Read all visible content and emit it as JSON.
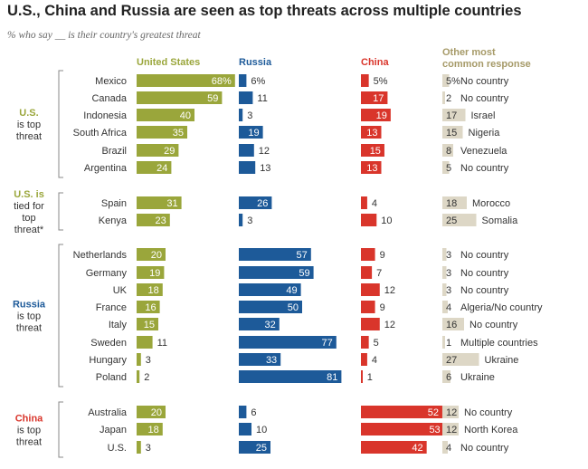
{
  "title": "U.S., China and Russia are seen as top threats across multiple countries",
  "subtitle": "% who say __ is their country's greatest threat",
  "colors": {
    "us": "#9aa63b",
    "russia": "#1d5a99",
    "china": "#d9352b",
    "other": "#ddd7c6",
    "other_header": "#a69a68",
    "bracket": "#888888",
    "text": "#333333"
  },
  "chart_data": {
    "type": "bar",
    "title": "U.S., China and Russia are seen as top threats across multiple countries",
    "subtitle": "% who say __ is their country's greatest threat",
    "xlim": [
      0,
      100
    ],
    "columns": [
      "United States",
      "Russia",
      "China",
      "Other most common response"
    ],
    "groups": [
      {
        "label": [
          "U.S.",
          "is top",
          "threat"
        ],
        "label_color": "us",
        "rows": [
          {
            "country": "Mexico",
            "us": 68,
            "russia": 6,
            "china": 5,
            "other_value": 5,
            "other_label": "No country"
          },
          {
            "country": "Canada",
            "us": 59,
            "russia": 11,
            "china": 17,
            "other_value": 2,
            "other_label": "No country"
          },
          {
            "country": "Indonesia",
            "us": 40,
            "russia": 3,
            "china": 19,
            "other_value": 17,
            "other_label": "Israel"
          },
          {
            "country": "South Africa",
            "us": 35,
            "russia": 19,
            "china": 13,
            "other_value": 15,
            "other_label": "Nigeria"
          },
          {
            "country": "Brazil",
            "us": 29,
            "russia": 12,
            "china": 15,
            "other_value": 8,
            "other_label": "Venezuela"
          },
          {
            "country": "Argentina",
            "us": 24,
            "russia": 13,
            "china": 13,
            "other_value": 5,
            "other_label": "No country"
          }
        ]
      },
      {
        "label": [
          "U.S. is",
          "tied for",
          "top",
          "threat*"
        ],
        "label_color": "us",
        "rows": [
          {
            "country": "Spain",
            "us": 31,
            "russia": 26,
            "china": 4,
            "other_value": 18,
            "other_label": "Morocco"
          },
          {
            "country": "Kenya",
            "us": 23,
            "russia": 3,
            "china": 10,
            "other_value": 25,
            "other_label": "Somalia"
          }
        ]
      },
      {
        "label": [
          "Russia",
          "is top",
          "threat"
        ],
        "label_color": "russia",
        "rows": [
          {
            "country": "Netherlands",
            "us": 20,
            "russia": 57,
            "china": 9,
            "other_value": 3,
            "other_label": "No country"
          },
          {
            "country": "Germany",
            "us": 19,
            "russia": 59,
            "china": 7,
            "other_value": 3,
            "other_label": "No country"
          },
          {
            "country": "UK",
            "us": 18,
            "russia": 49,
            "china": 12,
            "other_value": 3,
            "other_label": "No country"
          },
          {
            "country": "France",
            "us": 16,
            "russia": 50,
            "china": 9,
            "other_value": 4,
            "other_label": "Algeria/No country"
          },
          {
            "country": "Italy",
            "us": 15,
            "russia": 32,
            "china": 12,
            "other_value": 16,
            "other_label": "No country"
          },
          {
            "country": "Sweden",
            "us": 11,
            "russia": 77,
            "china": 5,
            "other_value": 1,
            "other_label": "Multiple countries"
          },
          {
            "country": "Hungary",
            "us": 3,
            "russia": 33,
            "china": 4,
            "other_value": 27,
            "other_label": "Ukraine"
          },
          {
            "country": "Poland",
            "us": 2,
            "russia": 81,
            "china": 1,
            "other_value": 6,
            "other_label": "Ukraine"
          }
        ]
      },
      {
        "label": [
          "China",
          "is top",
          "threat"
        ],
        "label_color": "china",
        "rows": [
          {
            "country": "Australia",
            "us": 20,
            "russia": 6,
            "china": 52,
            "other_value": 12,
            "other_label": "No country"
          },
          {
            "country": "Japan",
            "us": 18,
            "russia": 10,
            "china": 53,
            "other_value": 12,
            "other_label": "North Korea"
          },
          {
            "country": "U.S.",
            "us": 3,
            "russia": 25,
            "china": 42,
            "other_value": 4,
            "other_label": "No country"
          }
        ]
      }
    ]
  }
}
